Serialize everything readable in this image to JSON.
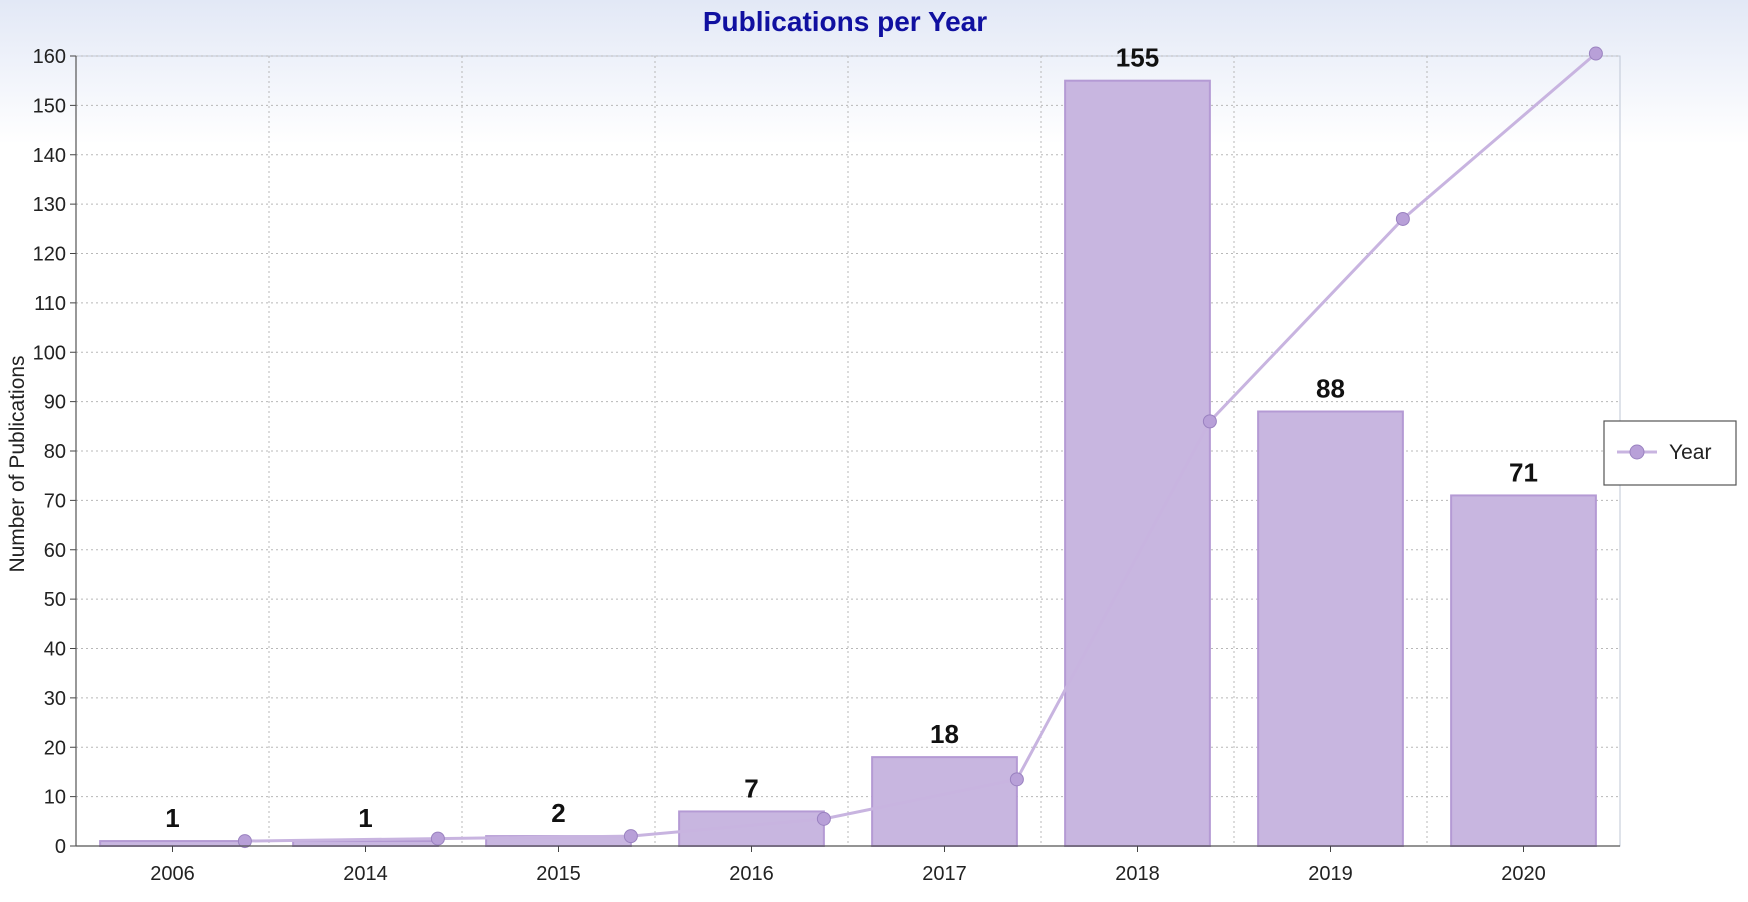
{
  "chart_data": {
    "type": "bar",
    "title": "Publications per Year",
    "xlabel": "",
    "ylabel": "Number of Publications",
    "categories": [
      "2006",
      "2014",
      "2015",
      "2016",
      "2017",
      "2018",
      "2019",
      "2020"
    ],
    "series": [
      {
        "type": "bar",
        "values": [
          1,
          1,
          2,
          7,
          18,
          155,
          88,
          71
        ],
        "data_labels": [
          "1",
          "1",
          "2",
          "7",
          "18",
          "155",
          "88",
          "71"
        ]
      },
      {
        "name": "Year",
        "type": "line",
        "values": [
          1,
          1.5,
          2,
          5.5,
          13.5,
          86,
          127,
          160.5
        ]
      }
    ],
    "ylim": [
      0,
      160
    ],
    "yticks": [
      0,
      10,
      20,
      30,
      40,
      50,
      60,
      70,
      80,
      90,
      100,
      110,
      120,
      130,
      140,
      150,
      160
    ],
    "grid": true,
    "legend_position": "right",
    "colors": {
      "bar_fill": "#c8b6e0",
      "bar_stroke": "#b49ad4",
      "line": "#c8b4e0",
      "marker": "#b8a0d8",
      "title": "#1010a0",
      "grid": "#b8b8b8"
    }
  }
}
